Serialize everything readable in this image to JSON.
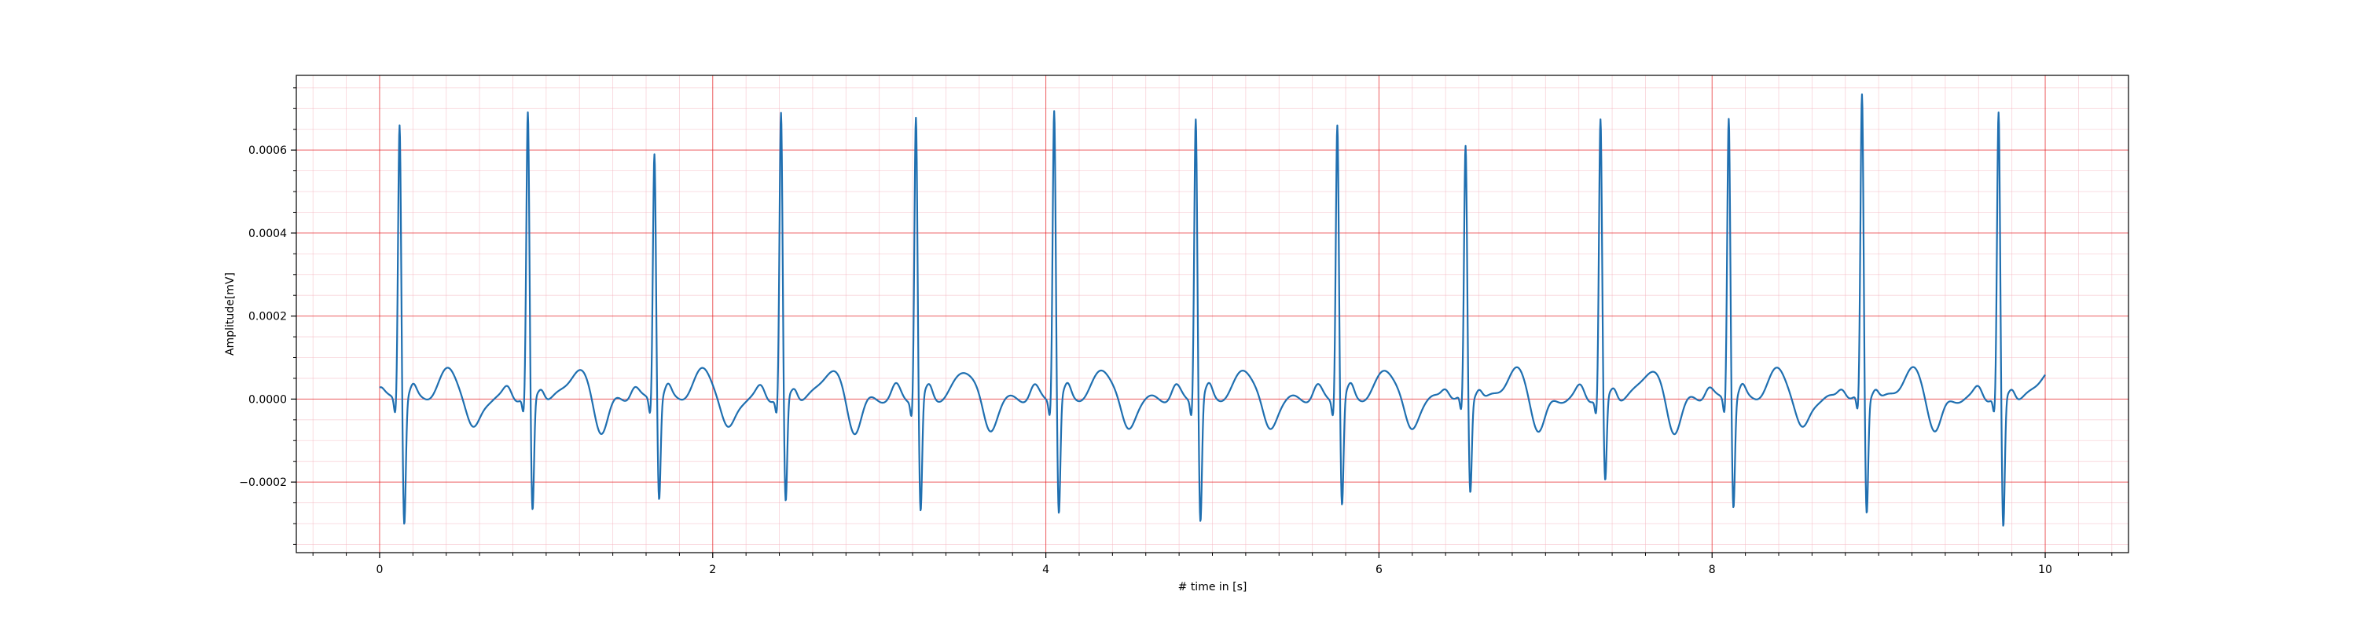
{
  "chart_data": {
    "type": "line",
    "title": "",
    "xlabel": "# time in [s]",
    "ylabel": "Amplitude[mV]",
    "xlim": [
      -0.5,
      10.5
    ],
    "ylim": [
      -0.00037,
      0.00078
    ],
    "grid": {
      "major": true,
      "minor": true,
      "major_color": "#e41a1c",
      "minor_color": "#f4b6c0"
    },
    "line_color": "#1f6fb0",
    "xticks": [
      0,
      2,
      4,
      6,
      8,
      10
    ],
    "xtick_labels": [
      "0",
      "2",
      "4",
      "6",
      "8",
      "10"
    ],
    "yticks": [
      -0.0002,
      0.0,
      0.0002,
      0.0004,
      0.0006
    ],
    "ytick_labels": [
      "−0.0002",
      "0.0000",
      "0.0002",
      "0.0004",
      "0.0006"
    ],
    "beats": [
      {
        "t": 0.12,
        "r": 0.00067,
        "s": -0.0003
      },
      {
        "t": 0.89,
        "r": 0.000685,
        "s": -0.00028
      },
      {
        "t": 1.65,
        "r": 0.0006,
        "s": -0.00024
      },
      {
        "t": 2.41,
        "r": 0.000685,
        "s": -0.00026
      },
      {
        "t": 3.22,
        "r": 0.000685,
        "s": -0.00028
      },
      {
        "t": 4.05,
        "r": 0.000705,
        "s": -0.00028
      },
      {
        "t": 4.9,
        "r": 0.000685,
        "s": -0.0003
      },
      {
        "t": 5.75,
        "r": 0.00067,
        "s": -0.00026
      },
      {
        "t": 6.52,
        "r": 0.000605,
        "s": -0.00023
      },
      {
        "t": 7.33,
        "r": 0.00067,
        "s": -0.00021
      },
      {
        "t": 8.1,
        "r": 0.000685,
        "s": -0.00026
      },
      {
        "t": 8.9,
        "r": 0.00073,
        "s": -0.00028
      },
      {
        "t": 9.72,
        "r": 0.000685,
        "s": -0.00032
      }
    ],
    "t_start": 0.0,
    "t_end": 10.0,
    "t_wave_amplitude": 7e-05,
    "t_wave_delay": 0.3,
    "p_wave_amplitude": 3e-05
  }
}
